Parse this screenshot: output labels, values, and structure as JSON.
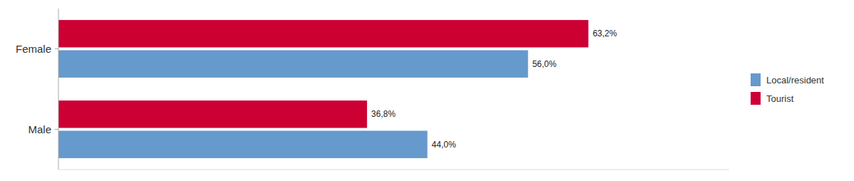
{
  "chart_data": {
    "type": "bar",
    "orientation": "horizontal",
    "categories": [
      "Female",
      "Male"
    ],
    "series": [
      {
        "name": "Local/resident",
        "color": "#6699CC",
        "values": [
          56.0,
          44.0
        ],
        "value_labels": [
          "56,0%",
          "44,0%"
        ]
      },
      {
        "name": "Tourist",
        "color": "#CC0033",
        "values": [
          63.2,
          36.8
        ],
        "value_labels": [
          "63,2%",
          "36,8%"
        ]
      }
    ],
    "xlim": [
      0,
      80
    ],
    "xticks": [],
    "tick_labels": "y",
    "data_labels": true,
    "grid": false,
    "legend": "right"
  }
}
